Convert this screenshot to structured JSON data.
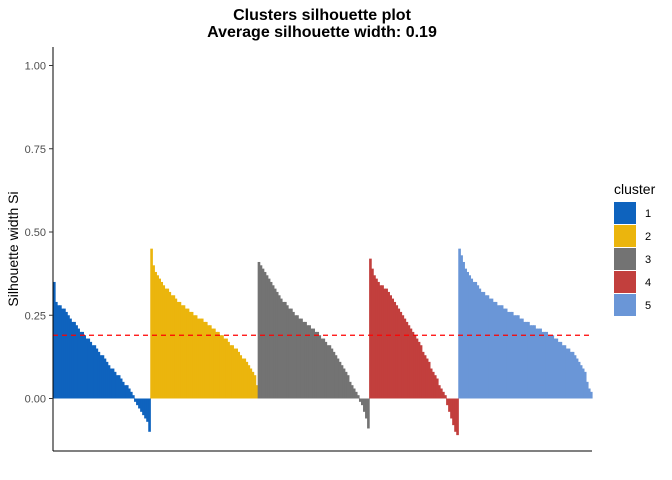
{
  "chart_data": {
    "type": "bar",
    "title": "Clusters silhouette plot",
    "subtitle": "Average silhouette width: 0.19",
    "xlabel": "",
    "ylabel": "Silhouette width Si",
    "ylim": [
      -0.13,
      1.05
    ],
    "yticks": [
      "0.00",
      "0.25",
      "0.50",
      "0.75",
      "1.00"
    ],
    "ytick_values": [
      0,
      0.25,
      0.5,
      0.75,
      1.0
    ],
    "reference_line": {
      "value": 0.19,
      "style": "dashed",
      "color": "#ff0000"
    },
    "grid": false,
    "legend": {
      "title": "cluster",
      "position": "right"
    },
    "series": [
      {
        "name": "1",
        "color": "#0e63be",
        "values": [
          0.35,
          0.29,
          0.28,
          0.28,
          0.27,
          0.27,
          0.26,
          0.25,
          0.24,
          0.23,
          0.23,
          0.22,
          0.21,
          0.2,
          0.2,
          0.19,
          0.18,
          0.18,
          0.17,
          0.16,
          0.16,
          0.15,
          0.14,
          0.13,
          0.13,
          0.12,
          0.11,
          0.1,
          0.09,
          0.09,
          0.08,
          0.07,
          0.07,
          0.06,
          0.05,
          0.04,
          0.04,
          0.03,
          0.02,
          0.01,
          -0.01,
          -0.02,
          -0.03,
          -0.04,
          -0.05,
          -0.06,
          -0.07,
          -0.1
        ]
      },
      {
        "name": "2",
        "color": "#ebb50d",
        "values": [
          0.45,
          0.4,
          0.38,
          0.37,
          0.36,
          0.35,
          0.34,
          0.33,
          0.33,
          0.32,
          0.31,
          0.31,
          0.3,
          0.29,
          0.29,
          0.28,
          0.28,
          0.27,
          0.27,
          0.26,
          0.26,
          0.25,
          0.25,
          0.24,
          0.24,
          0.24,
          0.23,
          0.23,
          0.22,
          0.22,
          0.21,
          0.21,
          0.2,
          0.2,
          0.19,
          0.19,
          0.18,
          0.18,
          0.17,
          0.16,
          0.16,
          0.15,
          0.15,
          0.14,
          0.13,
          0.12,
          0.12,
          0.11,
          0.1,
          0.09,
          0.08,
          0.07,
          0.04
        ]
      },
      {
        "name": "3",
        "color": "#737373",
        "values": [
          0.41,
          0.4,
          0.39,
          0.38,
          0.37,
          0.36,
          0.35,
          0.34,
          0.33,
          0.32,
          0.31,
          0.3,
          0.29,
          0.29,
          0.28,
          0.27,
          0.27,
          0.26,
          0.25,
          0.25,
          0.24,
          0.24,
          0.23,
          0.23,
          0.22,
          0.22,
          0.21,
          0.21,
          0.2,
          0.2,
          0.19,
          0.18,
          0.18,
          0.17,
          0.16,
          0.16,
          0.15,
          0.14,
          0.13,
          0.12,
          0.11,
          0.1,
          0.09,
          0.08,
          0.07,
          0.05,
          0.04,
          0.03,
          0.02,
          0.01,
          -0.01,
          -0.02,
          -0.04,
          -0.06,
          -0.09
        ]
      },
      {
        "name": "4",
        "color": "#c23f3d",
        "values": [
          0.42,
          0.39,
          0.37,
          0.36,
          0.35,
          0.34,
          0.34,
          0.33,
          0.33,
          0.32,
          0.31,
          0.3,
          0.29,
          0.28,
          0.27,
          0.26,
          0.25,
          0.24,
          0.23,
          0.22,
          0.21,
          0.2,
          0.19,
          0.18,
          0.17,
          0.16,
          0.14,
          0.13,
          0.12,
          0.11,
          0.09,
          0.08,
          0.07,
          0.06,
          0.04,
          0.03,
          0.02,
          0.01,
          -0.02,
          -0.04,
          -0.06,
          -0.08,
          -0.1,
          -0.11
        ]
      },
      {
        "name": "5",
        "color": "#6a96d7",
        "values": [
          0.45,
          0.43,
          0.41,
          0.39,
          0.38,
          0.37,
          0.36,
          0.35,
          0.35,
          0.34,
          0.33,
          0.32,
          0.32,
          0.31,
          0.31,
          0.3,
          0.3,
          0.29,
          0.29,
          0.28,
          0.28,
          0.28,
          0.27,
          0.27,
          0.26,
          0.26,
          0.26,
          0.25,
          0.25,
          0.25,
          0.24,
          0.24,
          0.23,
          0.23,
          0.23,
          0.22,
          0.22,
          0.22,
          0.21,
          0.21,
          0.21,
          0.2,
          0.2,
          0.2,
          0.19,
          0.19,
          0.19,
          0.18,
          0.18,
          0.17,
          0.17,
          0.16,
          0.16,
          0.15,
          0.15,
          0.14,
          0.14,
          0.13,
          0.12,
          0.11,
          0.1,
          0.09,
          0.08,
          0.05,
          0.03,
          0.02
        ]
      }
    ]
  }
}
